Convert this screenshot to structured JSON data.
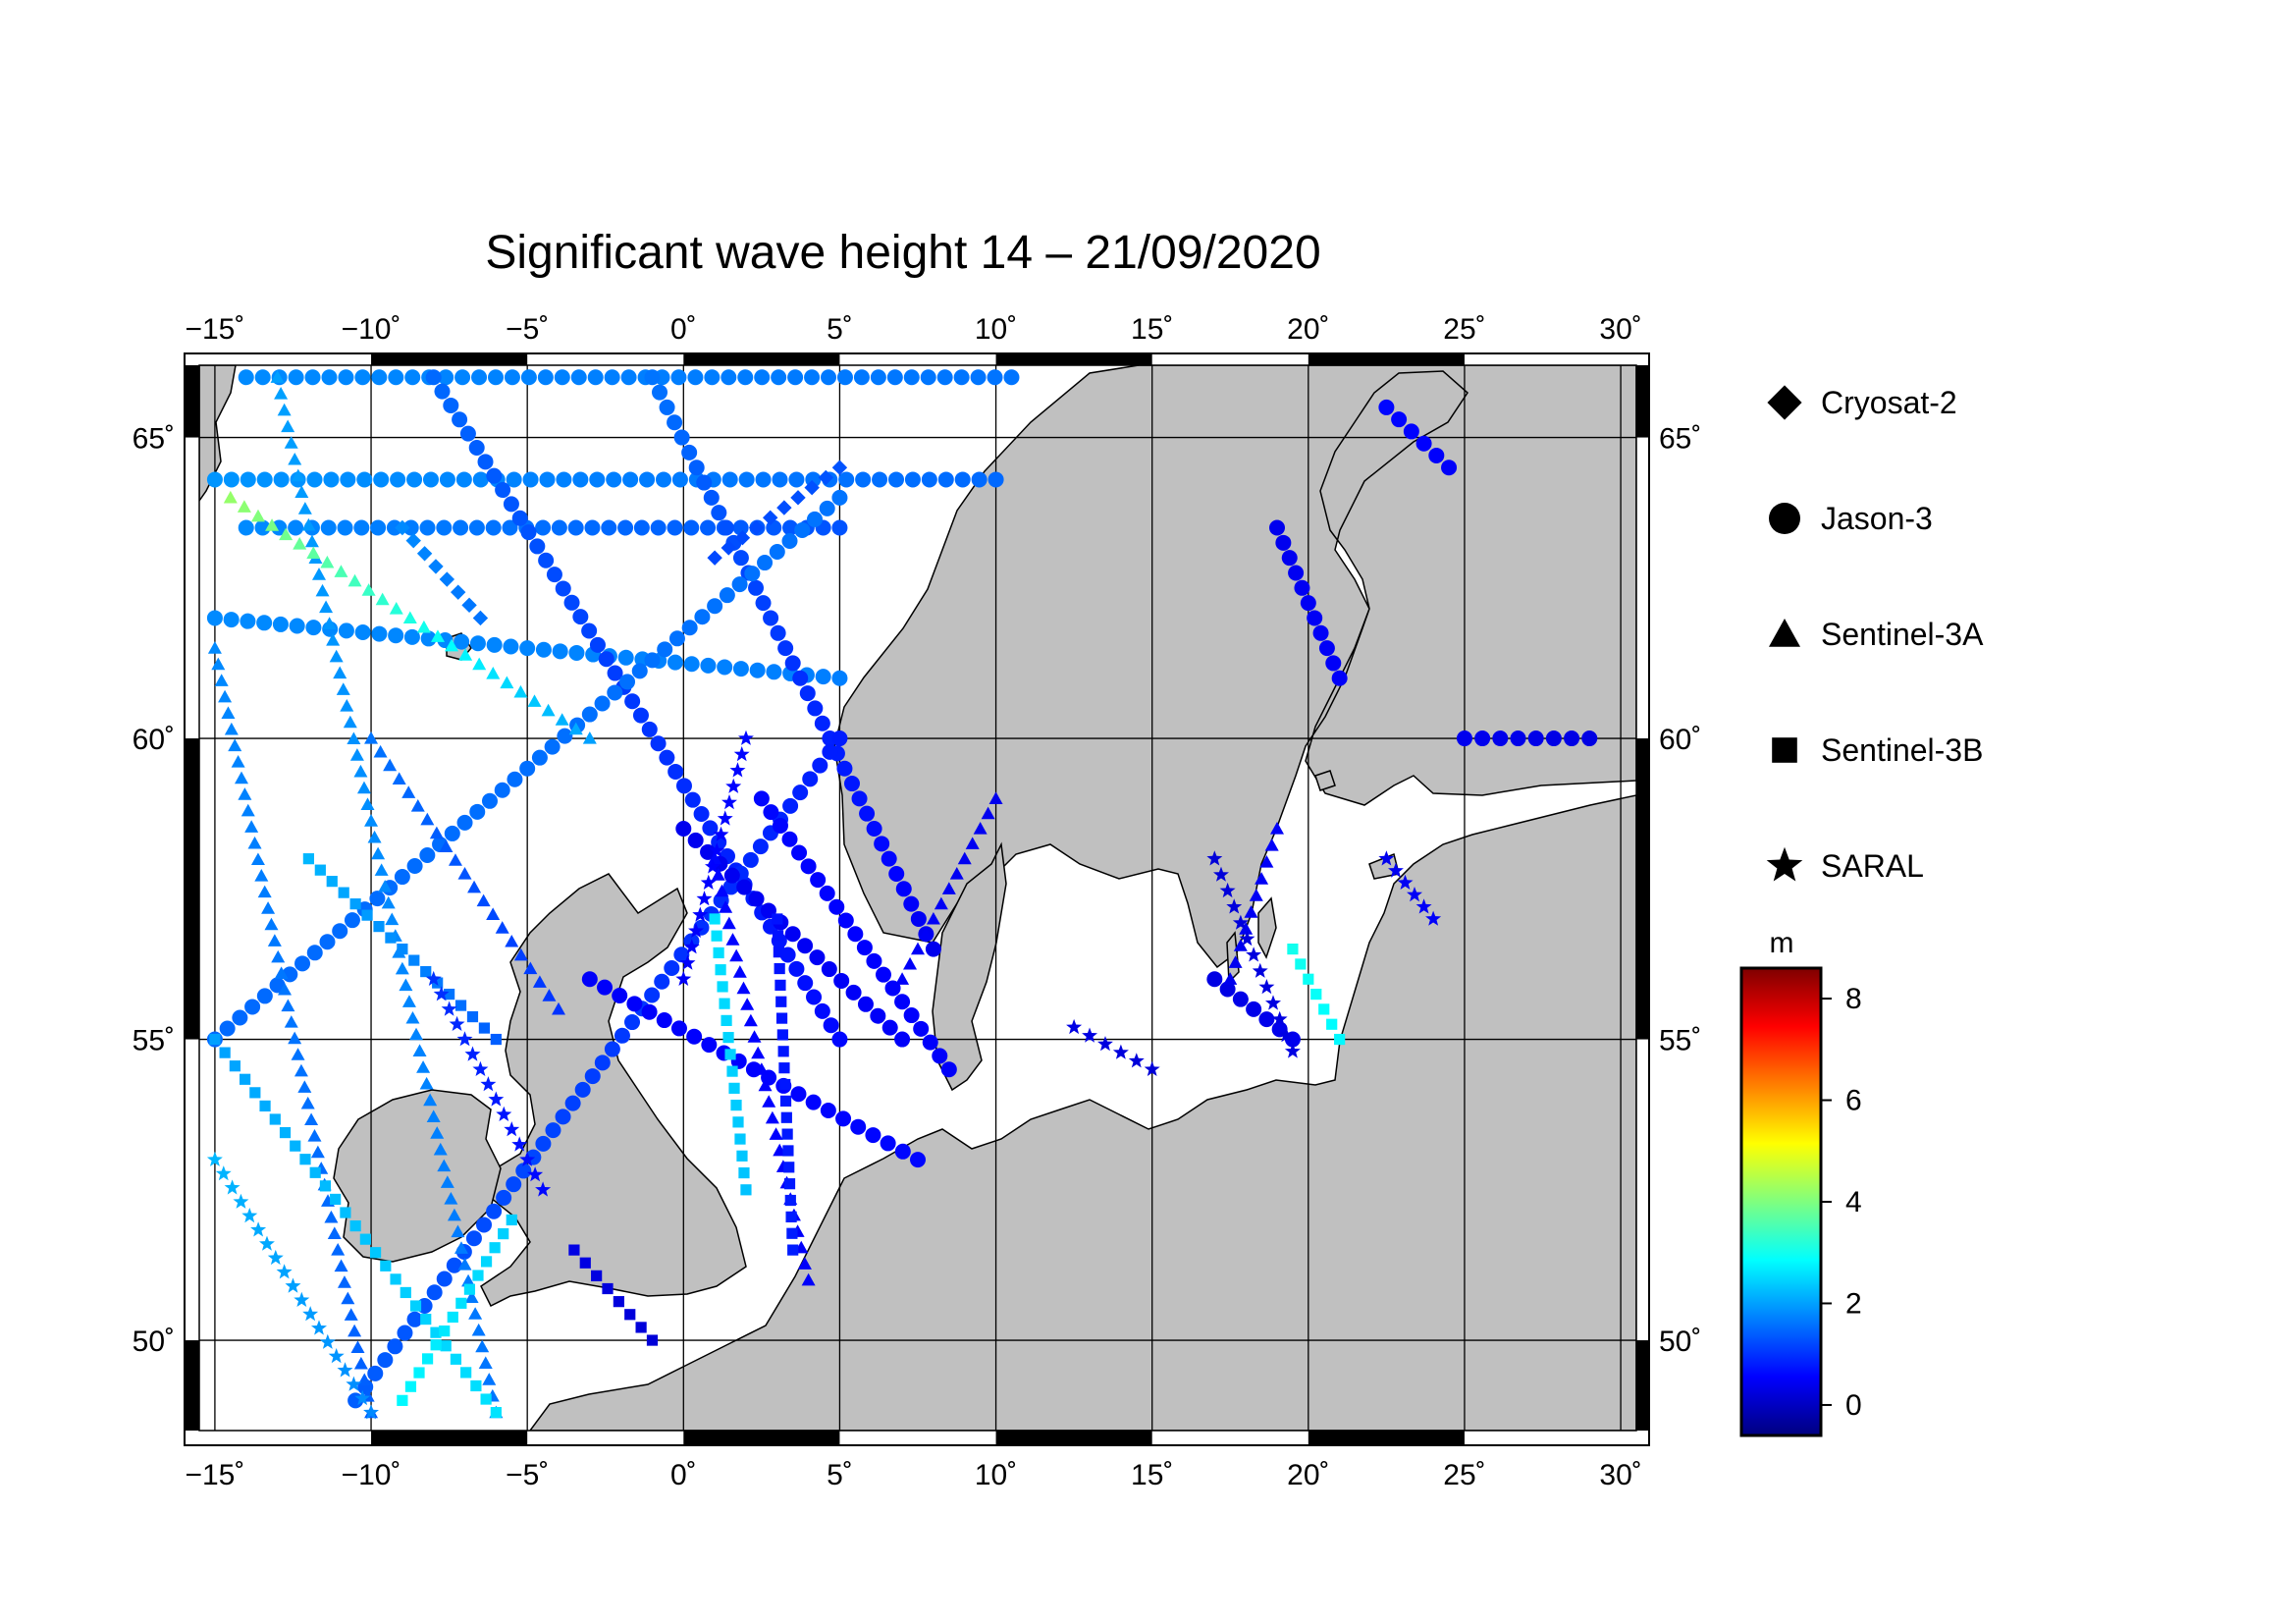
{
  "title": "Significant wave height 14 – 21/09/2020",
  "map": {
    "lon_range": [
      -15.5,
      30.5
    ],
    "lat_range": [
      48.5,
      66.2
    ],
    "lon_ticks": [
      {
        "value": -15,
        "label": "−15˚"
      },
      {
        "value": -10,
        "label": "−10˚"
      },
      {
        "value": -5,
        "label": "−5˚"
      },
      {
        "value": 0,
        "label": "0˚"
      },
      {
        "value": 5,
        "label": "5˚"
      },
      {
        "value": 10,
        "label": "10˚"
      },
      {
        "value": 15,
        "label": "15˚"
      },
      {
        "value": 20,
        "label": "20˚"
      },
      {
        "value": 25,
        "label": "25˚"
      },
      {
        "value": 30,
        "label": "30˚"
      }
    ],
    "lat_ticks": [
      {
        "value": 50,
        "label": "50˚"
      },
      {
        "value": 55,
        "label": "55˚"
      },
      {
        "value": 60,
        "label": "60˚"
      },
      {
        "value": 65,
        "label": "65˚"
      }
    ],
    "land_color": "#c0c0c0",
    "sea_color": "#ffffff"
  },
  "legend": {
    "items": [
      {
        "name": "Cryosat-2",
        "symbol": "diamond"
      },
      {
        "name": "Jason-3",
        "symbol": "circle"
      },
      {
        "name": "Sentinel-3A",
        "symbol": "triangle"
      },
      {
        "name": "Sentinel-3B",
        "symbol": "square"
      },
      {
        "name": "SARAL",
        "symbol": "star"
      }
    ]
  },
  "colorbar": {
    "unit": "m",
    "min": -0.6,
    "max": 8.6,
    "ticks": [
      {
        "value": 0,
        "label": "0"
      },
      {
        "value": 2,
        "label": "2"
      },
      {
        "value": 4,
        "label": "4"
      },
      {
        "value": 6,
        "label": "6"
      },
      {
        "value": 8,
        "label": "8"
      }
    ],
    "colors": [
      "#00007f",
      "#0000ff",
      "#007fff",
      "#00ffff",
      "#7fff7f",
      "#ffff00",
      "#ff7f00",
      "#ff0000",
      "#7f0000"
    ]
  },
  "chart_data": {
    "type": "scatter",
    "title": "Significant wave height 14 – 21/09/2020",
    "x_label": "",
    "y_label": "",
    "xlim": [
      -15.5,
      30.5
    ],
    "ylim": [
      48.5,
      66.2
    ],
    "color_variable": "Significant wave height (m)",
    "series": [
      {
        "name": "Jason-3",
        "tracks": [
          {
            "from": [
              -14.0,
              66.0
            ],
            "to": [
              10.5,
              66.0
            ],
            "hs_start": 1.8,
            "hs_end": 1.6
          },
          {
            "from": [
              -15.0,
              64.3
            ],
            "to": [
              10.0,
              64.3
            ],
            "hs_start": 1.9,
            "hs_end": 1.5
          },
          {
            "from": [
              -14.0,
              63.5
            ],
            "to": [
              5.0,
              63.5
            ],
            "hs_start": 1.8,
            "hs_end": 1.3
          },
          {
            "from": [
              -15.0,
              62.0
            ],
            "to": [
              5.0,
              61.0
            ],
            "hs_start": 1.8,
            "hs_end": 1.7
          },
          {
            "from": [
              -8.0,
              66.0
            ],
            "to": [
              5.0,
              55.0
            ],
            "hs_start": 1.5,
            "hs_end": 0.6
          },
          {
            "from": [
              -1.0,
              66.0
            ],
            "to": [
              8.0,
              56.5
            ],
            "hs_start": 1.6,
            "hs_end": 0.4
          },
          {
            "from": [
              -15.0,
              55.0
            ],
            "to": [
              5.0,
              64.0
            ],
            "hs_start": 1.5,
            "hs_end": 1.6
          },
          {
            "from": [
              -10.5,
              49.0
            ],
            "to": [
              5.0,
              60.0
            ],
            "hs_start": 1.4,
            "hs_end": 0.8
          },
          {
            "from": [
              -3.0,
              56.0
            ],
            "to": [
              7.5,
              53.0
            ],
            "hs_start": 0.5,
            "hs_end": 0.6
          },
          {
            "from": [
              0.0,
              58.5
            ],
            "to": [
              7.0,
              55.0
            ],
            "hs_start": 0.4,
            "hs_end": 0.5
          },
          {
            "from": [
              8.5,
              54.5
            ],
            "to": [
              2.5,
              59.0
            ],
            "hs_start": 0.5,
            "hs_end": 0.6
          },
          {
            "from": [
              19.0,
              63.5
            ],
            "to": [
              21.0,
              61.0
            ],
            "hs_start": 0.4,
            "hs_end": 0.5
          },
          {
            "from": [
              17.0,
              56.0
            ],
            "to": [
              19.5,
              55.0
            ],
            "hs_start": 0.3,
            "hs_end": 0.4
          },
          {
            "from": [
              25.0,
              60.0
            ],
            "to": [
              29.0,
              60.0
            ],
            "hs_start": 0.4,
            "hs_end": 0.3
          },
          {
            "from": [
              22.5,
              65.5
            ],
            "to": [
              24.5,
              64.5
            ],
            "hs_start": 0.6,
            "hs_end": 0.5
          }
        ]
      },
      {
        "name": "Sentinel-3A",
        "tracks": [
          {
            "from": [
              -15.0,
              61.5
            ],
            "to": [
              -10.0,
              48.8
            ],
            "hs_start": 1.8,
            "hs_end": 1.4
          },
          {
            "from": [
              -13.0,
              66.0
            ],
            "to": [
              -6.0,
              48.8
            ],
            "hs_start": 2.0,
            "hs_end": 1.6
          },
          {
            "from": [
              -14.5,
              64.0
            ],
            "to": [
              -3.0,
              60.0
            ],
            "hs_start": 4.2,
            "hs_end": 2.0
          },
          {
            "from": [
              -10.0,
              60.0
            ],
            "to": [
              -4.0,
              55.5
            ],
            "hs_start": 1.6,
            "hs_end": 1.0
          },
          {
            "from": [
              1.0,
              58.0
            ],
            "to": [
              4.0,
              51.0
            ],
            "hs_start": 0.6,
            "hs_end": 0.5
          },
          {
            "from": [
              17.5,
              56.0
            ],
            "to": [
              19.0,
              58.5
            ],
            "hs_start": 0.4,
            "hs_end": 0.5
          },
          {
            "from": [
              7.0,
              56.0
            ],
            "to": [
              10.0,
              59.0
            ],
            "hs_start": 0.5,
            "hs_end": 0.4
          }
        ]
      },
      {
        "name": "Sentinel-3B",
        "tracks": [
          {
            "from": [
              -15.0,
              55.0
            ],
            "to": [
              -6.0,
              48.8
            ],
            "hs_start": 2.0,
            "hs_end": 2.6
          },
          {
            "from": [
              -12.0,
              58.0
            ],
            "to": [
              -6.0,
              55.0
            ],
            "hs_start": 2.2,
            "hs_end": 1.4
          },
          {
            "from": [
              3.0,
              57.0
            ],
            "to": [
              3.5,
              51.5
            ],
            "hs_start": 0.7,
            "hs_end": 0.8
          },
          {
            "from": [
              1.0,
              57.0
            ],
            "to": [
              2.0,
              52.5
            ],
            "hs_start": 2.6,
            "hs_end": 2.3
          },
          {
            "from": [
              -3.5,
              51.5
            ],
            "to": [
              -1.0,
              50.0
            ],
            "hs_start": 0.3,
            "hs_end": 0.2
          },
          {
            "from": [
              19.5,
              56.5
            ],
            "to": [
              21.0,
              55.0
            ],
            "hs_start": 3.0,
            "hs_end": 2.8
          },
          {
            "from": [
              -9.0,
              49.0
            ],
            "to": [
              -5.5,
              52.0
            ],
            "hs_start": 2.8,
            "hs_end": 2.4
          }
        ]
      },
      {
        "name": "SARAL",
        "tracks": [
          {
            "from": [
              -15.0,
              53.0
            ],
            "to": [
              -10.0,
              48.8
            ],
            "hs_start": 2.2,
            "hs_end": 1.8
          },
          {
            "from": [
              -8.0,
              56.0
            ],
            "to": [
              -4.5,
              52.5
            ],
            "hs_start": 1.0,
            "hs_end": 0.6
          },
          {
            "from": [
              2.0,
              60.0
            ],
            "to": [
              0.0,
              56.0
            ],
            "hs_start": 0.6,
            "hs_end": 0.5
          },
          {
            "from": [
              17.0,
              58.0
            ],
            "to": [
              19.5,
              54.8
            ],
            "hs_start": 0.2,
            "hs_end": 0.3
          },
          {
            "from": [
              12.5,
              55.2
            ],
            "to": [
              15.0,
              54.5
            ],
            "hs_start": 0.3,
            "hs_end": 0.2
          },
          {
            "from": [
              22.5,
              58.0
            ],
            "to": [
              24.0,
              57.0
            ],
            "hs_start": 0.4,
            "hs_end": 0.5
          }
        ]
      },
      {
        "name": "Cryosat-2",
        "tracks": [
          {
            "from": [
              1.0,
              63.0
            ],
            "to": [
              5.0,
              64.5
            ],
            "hs_start": 1.2,
            "hs_end": 1.3
          },
          {
            "from": [
              -9.0,
              63.5
            ],
            "to": [
              -6.5,
              62.0
            ],
            "hs_start": 1.8,
            "hs_end": 1.6
          }
        ]
      }
    ]
  }
}
